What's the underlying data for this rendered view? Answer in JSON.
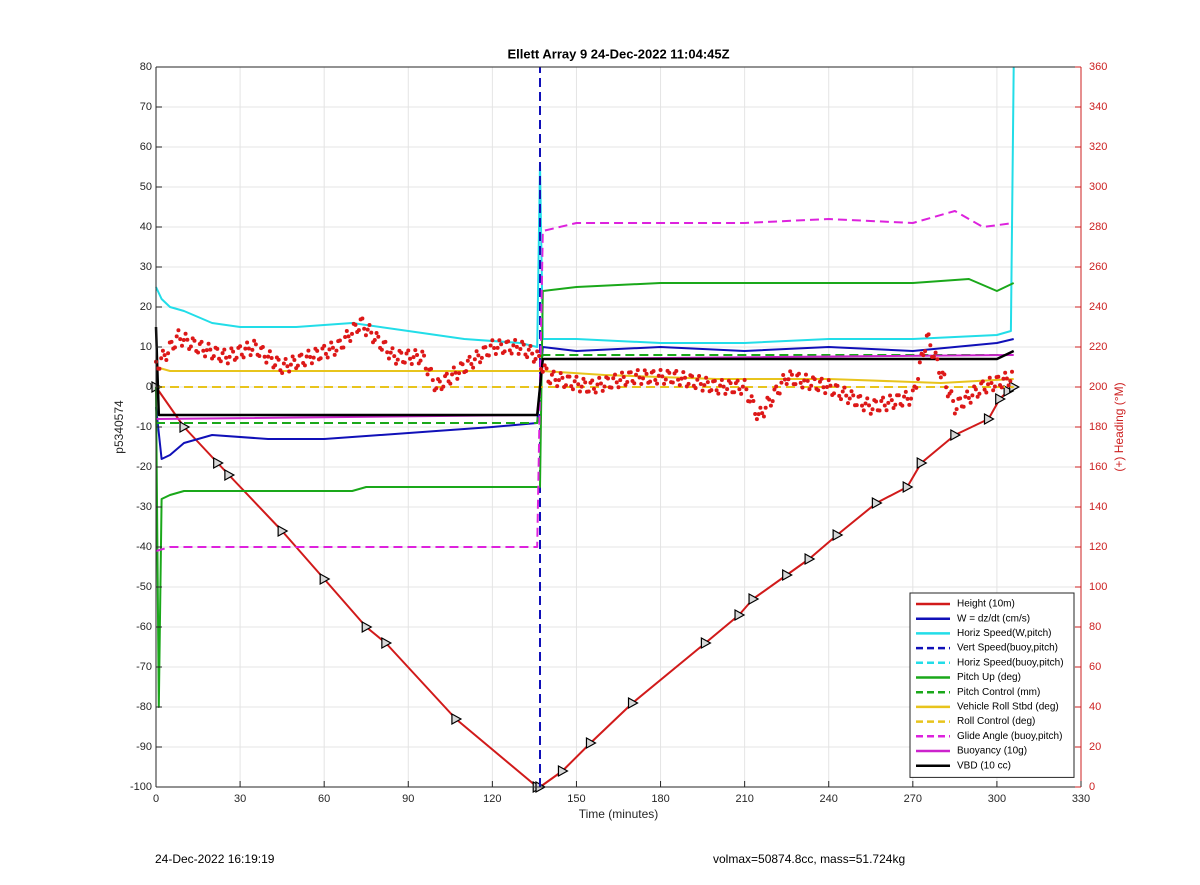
{
  "footer": {
    "left": "24-Dec-2022 16:19:19",
    "right": "volmax=50874.8cc, mass=51.724kg"
  },
  "chart_data": {
    "type": "line",
    "title": "Ellett Array 9 24-Dec-2022 11:04:45Z",
    "xlabel": "Time (minutes)",
    "ylabel": "p5340574",
    "y2label": "(+) Heading (°M)",
    "xlim": [
      0,
      330
    ],
    "ylim": [
      -100,
      80
    ],
    "y2lim": [
      0,
      360
    ],
    "xticks": [
      0,
      30,
      60,
      90,
      120,
      150,
      180,
      210,
      240,
      270,
      300,
      330
    ],
    "yticks": [
      -100,
      -90,
      -80,
      -70,
      -60,
      -50,
      -40,
      -30,
      -20,
      -10,
      0,
      10,
      20,
      30,
      40,
      50,
      60,
      70,
      80
    ],
    "y2ticks": [
      0,
      20,
      40,
      60,
      80,
      100,
      120,
      140,
      160,
      180,
      200,
      220,
      240,
      260,
      280,
      300,
      320,
      340,
      360
    ],
    "grid": true,
    "legend_position": "lower-right",
    "series": [
      {
        "name": "Height (10m)",
        "color": "#d11a1a",
        "style": "solid",
        "marker": "triangle",
        "x": [
          0,
          10,
          22,
          26,
          45,
          60,
          75,
          82,
          107,
          136,
          137,
          145,
          155,
          170,
          196,
          208,
          213,
          225,
          233,
          243,
          257,
          268,
          273,
          285,
          297,
          301,
          304,
          306
        ],
        "y": [
          0,
          -10,
          -19,
          -22,
          -36,
          -48,
          -60,
          -64,
          -83,
          -100,
          -100,
          -96,
          -89,
          -79,
          -64,
          -57,
          -53,
          -47,
          -43,
          -37,
          -29,
          -25,
          -19,
          -12,
          -8,
          -3,
          -1,
          0
        ]
      },
      {
        "name": "W = dz/dt (cm/s)",
        "color": "#1010b8",
        "style": "solid",
        "x": [
          0,
          2,
          5,
          10,
          20,
          40,
          60,
          80,
          100,
          120,
          136,
          138,
          150,
          180,
          210,
          240,
          270,
          300,
          306
        ],
        "y": [
          -5,
          -18,
          -17,
          -14,
          -12,
          -13,
          -13,
          -12,
          -11,
          -10,
          -9,
          10,
          9,
          10,
          9,
          10,
          9,
          11,
          12
        ]
      },
      {
        "name": "Horiz Speed(W,pitch)",
        "color": "#22dde8",
        "style": "solid",
        "x": [
          0,
          2,
          5,
          10,
          20,
          30,
          50,
          70,
          90,
          110,
          130,
          136,
          137,
          138,
          150,
          180,
          210,
          240,
          270,
          300,
          305,
          306
        ],
        "y": [
          25,
          22,
          20,
          19,
          16,
          15,
          15,
          16,
          14,
          12,
          11,
          10,
          56,
          12,
          12,
          11,
          11,
          12,
          12,
          13,
          14,
          80
        ]
      },
      {
        "name": "Vert Speed(buoy,pitch)",
        "color": "#1010b8",
        "style": "dashed",
        "x": [
          137,
          137
        ],
        "y": [
          -100,
          80
        ]
      },
      {
        "name": "Horiz Speed(buoy,pitch)",
        "color": "#22dde8",
        "style": "dashed",
        "x": [],
        "y": []
      },
      {
        "name": "Pitch Up (deg)",
        "color": "#1aa81a",
        "style": "solid",
        "x": [
          0,
          1,
          2,
          5,
          10,
          30,
          70,
          75,
          100,
          136,
          137,
          138,
          150,
          180,
          210,
          240,
          270,
          290,
          300,
          306
        ],
        "y": [
          0,
          -80,
          -28,
          -27,
          -26,
          -26,
          -26,
          -25,
          -25,
          -25,
          -25,
          24,
          25,
          26,
          26,
          26,
          26,
          27,
          24,
          26
        ]
      },
      {
        "name": "Pitch Control (mm)",
        "color": "#1aa81a",
        "style": "dashed",
        "x": [
          0,
          136,
          138,
          306
        ],
        "y": [
          -9,
          -9,
          8,
          8
        ]
      },
      {
        "name": "Vehicle Roll Stbd (deg)",
        "color": "#e8c41c",
        "style": "solid",
        "x": [
          0,
          5,
          30,
          60,
          90,
          120,
          136,
          138,
          160,
          200,
          240,
          280,
          306
        ],
        "y": [
          5,
          4,
          4,
          4,
          4,
          4,
          4,
          4,
          3,
          2,
          2,
          1,
          2
        ]
      },
      {
        "name": "Roll Control (deg)",
        "color": "#e8c41c",
        "style": "dashed",
        "x": [
          0,
          136,
          138,
          306
        ],
        "y": [
          0,
          0,
          0,
          0
        ]
      },
      {
        "name": "Glide Angle (buoy,pitch)",
        "color": "#dd22dd",
        "style": "dashed",
        "x": [
          0,
          5,
          30,
          60,
          90,
          120,
          136,
          138,
          150,
          180,
          210,
          240,
          270,
          285,
          295,
          306
        ],
        "y": [
          -41,
          -40,
          -40,
          -40,
          -40,
          -40,
          -40,
          39,
          41,
          41,
          41,
          42,
          41,
          44,
          40,
          41
        ]
      },
      {
        "name": "Buoyancy (10g)",
        "color": "#cc22cc",
        "style": "solid",
        "x": [
          0,
          136,
          138,
          306
        ],
        "y": [
          -8,
          -7,
          7,
          8
        ]
      },
      {
        "name": "VBD (10 cc)",
        "color": "#000000",
        "style": "solid",
        "x": [
          0,
          1,
          2,
          135,
          136,
          138,
          300,
          306
        ],
        "y": [
          15,
          -7,
          -7,
          -7,
          -7,
          7,
          7,
          9
        ]
      },
      {
        "name": "Heading (°M)",
        "color": "#dd1818",
        "style": "dots",
        "axis": "right",
        "legend": false,
        "x": [
          0,
          8,
          15,
          25,
          35,
          45,
          55,
          65,
          73,
          85,
          95,
          100,
          110,
          120,
          130,
          136,
          140,
          155,
          170,
          185,
          200,
          210,
          215,
          225,
          240,
          255,
          270,
          275,
          285,
          295,
          306
        ],
        "y": [
          210,
          225,
          220,
          215,
          220,
          210,
          215,
          220,
          232,
          215,
          215,
          200,
          210,
          220,
          220,
          215,
          205,
          200,
          205,
          205,
          200,
          200,
          185,
          205,
          200,
          190,
          195,
          225,
          190,
          200,
          205
        ]
      }
    ]
  }
}
